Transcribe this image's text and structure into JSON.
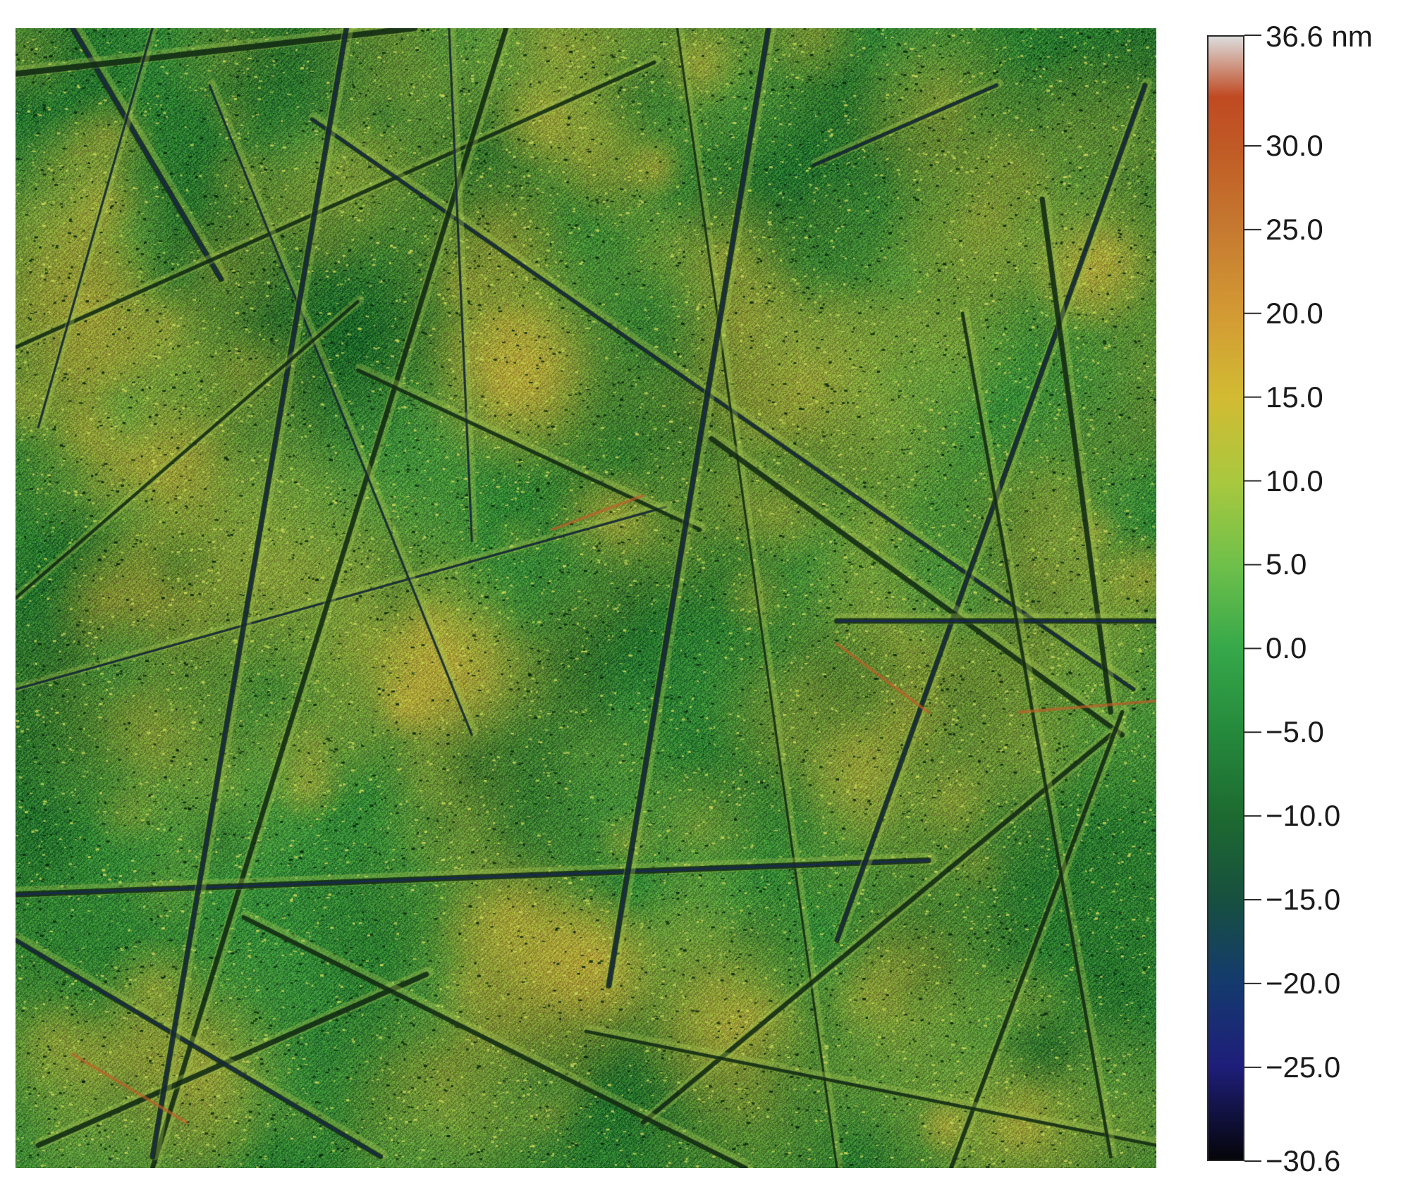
{
  "colorbar": {
    "unit": "nm",
    "max_label": "36.6 nm",
    "tick_labels": [
      "30.0",
      "25.0",
      "20.0",
      "15.0",
      "10.0",
      "5.0",
      "0.0",
      "−5.0",
      "−10.0",
      "−15.0",
      "−20.0",
      "−25.0",
      "−30.6"
    ],
    "tick_values": [
      30.0,
      25.0,
      20.0,
      15.0,
      10.0,
      5.0,
      0.0,
      -5.0,
      -10.0,
      -15.0,
      -20.0,
      -25.0,
      -30.6
    ],
    "min_value": -30.6,
    "max_value": 36.6,
    "gradient": [
      {
        "v": -30.6,
        "color": "#05050a"
      },
      {
        "v": -25.0,
        "color": "#1e1e7a"
      },
      {
        "v": -20.0,
        "color": "#143a6e"
      },
      {
        "v": -15.0,
        "color": "#17503f"
      },
      {
        "v": -10.0,
        "color": "#1d6a30"
      },
      {
        "v": -5.0,
        "color": "#258a3c"
      },
      {
        "v": 0.0,
        "color": "#36a84a"
      },
      {
        "v": 5.0,
        "color": "#6fc04a"
      },
      {
        "v": 10.0,
        "color": "#a9c83e"
      },
      {
        "v": 15.0,
        "color": "#d2bb33"
      },
      {
        "v": 20.0,
        "color": "#d39a33"
      },
      {
        "v": 25.0,
        "color": "#c67a30"
      },
      {
        "v": 30.0,
        "color": "#c05a25"
      },
      {
        "v": 33.0,
        "color": "#c04a22"
      },
      {
        "v": 36.6,
        "color": "#dcdcdc"
      }
    ]
  },
  "afm_image": {
    "subject": "AFM height map with scratch lines",
    "base_color": "#2f7e2f",
    "highlight_color": "#d8b23a",
    "scratch_color": "#0f2a12"
  }
}
